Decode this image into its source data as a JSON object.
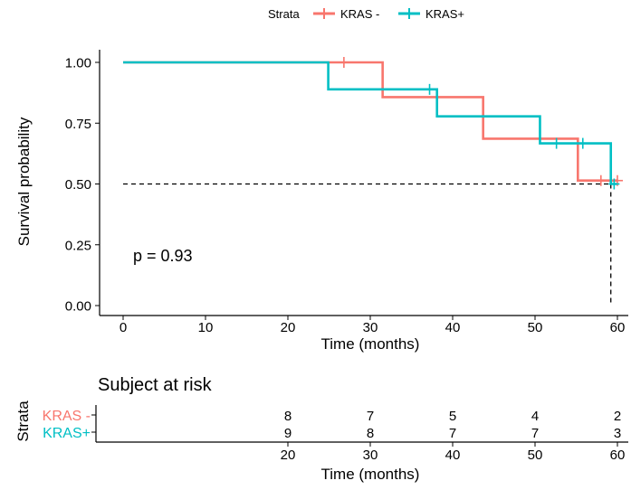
{
  "legend": {
    "title": "Strata",
    "items": [
      {
        "label": "KRAS -",
        "color": "#F8766D"
      },
      {
        "label": "KRAS+",
        "color": "#00BFC4"
      }
    ]
  },
  "chart_data": [
    {
      "type": "line",
      "subtype": "kaplan-meier step survival curve",
      "ylabel": "Survival probability",
      "xlabel": "Time (months)",
      "xlim": [
        0,
        60
      ],
      "ylim": [
        0,
        1
      ],
      "x_ticks": [
        0,
        10,
        20,
        30,
        40,
        50,
        60
      ],
      "x_tick_labels": [
        "0",
        "10",
        "20",
        "30",
        "40",
        "50",
        "60"
      ],
      "y_ticks": [
        0,
        0.25,
        0.5,
        0.75,
        1
      ],
      "y_tick_labels": [
        "0.00",
        "0.25",
        "0.50",
        "0.75",
        "1.00"
      ],
      "grid": false,
      "legend_position": "top",
      "annotation": "p = 0.93",
      "median_reference": {
        "y": 0.5,
        "x_end": 59.2
      },
      "series": [
        {
          "name": "KRAS -",
          "color": "#F8766D",
          "steps": [
            {
              "x": 0,
              "y": 1.0
            },
            {
              "x": 31.5,
              "y": 0.857
            },
            {
              "x": 43.7,
              "y": 0.686
            },
            {
              "x": 55.2,
              "y": 0.514
            },
            {
              "x": 60,
              "y": 0.514
            }
          ],
          "censor_marks": [
            {
              "x": 26.8,
              "y": 1.0
            },
            {
              "x": 58.0,
              "y": 0.514
            },
            {
              "x": 60.0,
              "y": 0.514
            }
          ]
        },
        {
          "name": "KRAS+",
          "color": "#00BFC4",
          "steps": [
            {
              "x": 0,
              "y": 1.0
            },
            {
              "x": 24.9,
              "y": 0.889
            },
            {
              "x": 38.1,
              "y": 0.778
            },
            {
              "x": 50.6,
              "y": 0.667
            },
            {
              "x": 59.2,
              "y": 0.5
            },
            {
              "x": 60,
              "y": 0.5
            }
          ],
          "censor_marks": [
            {
              "x": 37.2,
              "y": 0.889
            },
            {
              "x": 52.6,
              "y": 0.667
            },
            {
              "x": 55.8,
              "y": 0.667
            },
            {
              "x": 59.6,
              "y": 0.5
            }
          ]
        }
      ]
    },
    {
      "type": "table",
      "title": "Subject at risk",
      "ylabel": "Strata",
      "xlabel": "Time (months)",
      "x_ticks": [
        20,
        30,
        40,
        50,
        60
      ],
      "x_tick_labels": [
        "20",
        "30",
        "40",
        "50",
        "60"
      ],
      "rows": [
        {
          "label": "KRAS -",
          "color": "#F8766D",
          "values": [
            "8",
            "7",
            "5",
            "4",
            "2"
          ]
        },
        {
          "label": "KRAS+",
          "color": "#00BFC4",
          "values": [
            "9",
            "8",
            "7",
            "7",
            "3"
          ]
        }
      ]
    }
  ]
}
